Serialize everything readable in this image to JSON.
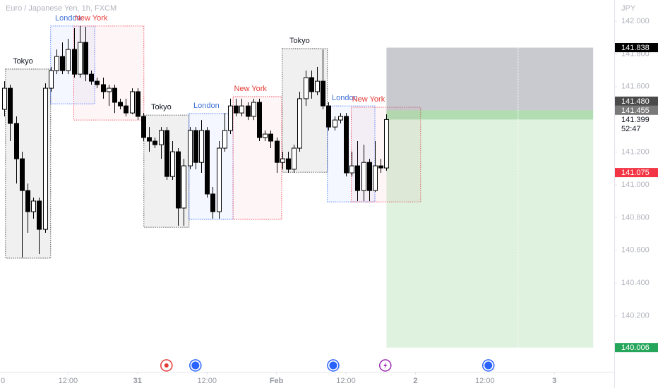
{
  "chart_data": {
    "type": "candlestick",
    "title": "Euro / Japanese Yen, 1h, FXCM",
    "currency": "JPY",
    "up_color": "#ffffff",
    "down_color": "#000000",
    "grid": false,
    "xlim": [
      0.244,
      106.34
    ],
    "ylim": [
      139.858,
      142.129
    ],
    "xticks": [
      {
        "value": 0,
        "label": "0"
      },
      {
        "value": 12,
        "label": "12:00"
      },
      {
        "value": 24,
        "label": "31",
        "bold": true
      },
      {
        "value": 36,
        "label": "12:00"
      },
      {
        "value": 48,
        "label": "Feb",
        "bold": true
      },
      {
        "value": 60,
        "label": "12:00"
      },
      {
        "value": 72,
        "label": "2",
        "bold": true
      },
      {
        "value": 84,
        "label": "12:00"
      },
      {
        "value": 96,
        "label": "3",
        "bold": true
      }
    ],
    "yticks": [
      {
        "value": 142.0,
        "label": "142.000"
      },
      {
        "value": 141.8,
        "label": "141.800"
      },
      {
        "value": 141.6,
        "label": "141.600"
      },
      {
        "value": 141.4,
        "label": "141.400"
      },
      {
        "value": 141.2,
        "label": "141.200"
      },
      {
        "value": 141.0,
        "label": "141.000"
      },
      {
        "value": 140.8,
        "label": "140.800"
      },
      {
        "value": 140.6,
        "label": "140.600"
      },
      {
        "value": 140.4,
        "label": "140.400"
      },
      {
        "value": 140.2,
        "label": "140.200"
      }
    ],
    "x": [
      1,
      2,
      3,
      4,
      5,
      6,
      7,
      8,
      9,
      10,
      11,
      12,
      13,
      14,
      15,
      16,
      17,
      18,
      19,
      20,
      21,
      22,
      23,
      24,
      25,
      26,
      27,
      28,
      29,
      30,
      31,
      32,
      33,
      34,
      35,
      36,
      37,
      38,
      39,
      40,
      41,
      42,
      43,
      44,
      45,
      46,
      47,
      48,
      49,
      50,
      51,
      52,
      53,
      54,
      55,
      56,
      57,
      58,
      59,
      60,
      61,
      62,
      63,
      64,
      65,
      66,
      67
    ],
    "open": [
      141.461,
      141.59,
      141.375,
      141.159,
      140.965,
      140.836,
      140.901,
      140.728,
      141.59,
      141.698,
      141.784,
      141.698,
      141.827,
      141.676,
      141.87,
      141.676,
      141.633,
      141.612,
      141.569,
      141.59,
      141.504,
      141.482,
      141.439,
      141.569,
      141.418,
      141.289,
      141.267,
      141.245,
      141.332,
      141.051,
      141.202,
      140.858,
      141.116,
      141.332,
      141.137,
      141.332,
      140.944,
      140.836,
      141.224,
      141.332,
      141.482,
      141.439,
      141.482,
      141.418,
      141.504,
      141.289,
      141.31,
      141.267,
      141.137,
      141.159,
      141.095,
      141.224,
      141.526,
      141.655,
      141.569,
      141.633,
      141.482,
      141.353,
      141.396,
      141.418,
      141.073,
      141.116,
      140.965,
      141.137,
      140.965,
      141.116,
      141.103
    ],
    "high": [
      141.633,
      141.612,
      141.418,
      141.202,
      141.008,
      140.922,
      140.922,
      141.62,
      141.72,
      141.827,
      141.87,
      141.892,
      141.957,
      141.97,
      141.965,
      141.698,
      141.655,
      141.655,
      141.612,
      141.612,
      141.526,
      141.526,
      141.59,
      141.59,
      141.439,
      141.353,
      141.289,
      141.353,
      141.353,
      141.267,
      141.224,
      141.159,
      141.353,
      141.353,
      141.396,
      141.353,
      140.987,
      141.267,
      141.439,
      141.526,
      141.526,
      141.526,
      141.504,
      141.526,
      141.526,
      141.332,
      141.332,
      141.289,
      141.202,
      141.202,
      141.245,
      141.569,
      141.698,
      141.698,
      141.72,
      141.827,
      141.504,
      141.418,
      141.439,
      141.439,
      141.202,
      141.267,
      141.245,
      141.159,
      141.267,
      141.159,
      141.431
    ],
    "low": [
      141.418,
      141.267,
      141.008,
      140.556,
      140.707,
      140.793,
      140.577,
      140.707,
      141.569,
      141.676,
      141.676,
      141.676,
      141.655,
      141.655,
      141.633,
      141.612,
      141.59,
      141.526,
      141.482,
      141.439,
      141.461,
      141.418,
      141.431,
      141.396,
      141.267,
      141.202,
      141.224,
      141.159,
      141.03,
      141.03,
      140.75,
      140.75,
      141.095,
      141.095,
      141.073,
      140.922,
      140.793,
      140.793,
      141.202,
      141.31,
      141.418,
      141.418,
      141.396,
      141.396,
      141.267,
      141.267,
      141.224,
      141.073,
      141.095,
      141.073,
      141.073,
      141.202,
      141.482,
      141.526,
      141.547,
      141.461,
      141.332,
      141.332,
      141.375,
      141.051,
      141.051,
      140.901,
      140.901,
      140.901,
      140.957,
      141.073,
      141.086
    ],
    "close": [
      141.59,
      141.375,
      141.159,
      140.965,
      140.836,
      140.901,
      140.728,
      141.59,
      141.698,
      141.784,
      141.698,
      141.827,
      141.676,
      141.87,
      141.676,
      141.633,
      141.612,
      141.569,
      141.59,
      141.504,
      141.482,
      141.439,
      141.569,
      141.418,
      141.289,
      141.267,
      141.245,
      141.332,
      141.051,
      141.202,
      140.858,
      141.116,
      141.332,
      141.137,
      141.332,
      140.944,
      140.836,
      141.224,
      141.332,
      141.482,
      141.439,
      141.482,
      141.418,
      141.504,
      141.289,
      141.31,
      141.267,
      141.137,
      141.159,
      141.095,
      141.224,
      141.526,
      141.655,
      141.569,
      141.633,
      141.482,
      141.353,
      141.396,
      141.418,
      141.073,
      141.116,
      140.965,
      141.137,
      140.965,
      141.116,
      141.103,
      141.399
    ],
    "sessions": [
      {
        "name": "Tokyo",
        "start": 1.2,
        "end": 9.0,
        "high": 141.707,
        "low": 140.552,
        "color": "#000000",
        "label_color": "#131722"
      },
      {
        "name": "London",
        "start": 9.0,
        "end": 16.6,
        "high": 141.97,
        "low": 141.495,
        "color": "#2962ff",
        "label_color": "#3d6fd6"
      },
      {
        "name": "New York",
        "start": 13.0,
        "end": 25.1,
        "high": 141.97,
        "low": 141.396,
        "color": "#f23645",
        "label_color": "#e53935"
      },
      {
        "name": "Tokyo",
        "start": 25.1,
        "end": 32.9,
        "high": 141.426,
        "low": 140.741,
        "color": "#000000",
        "label_color": "#131722"
      },
      {
        "name": "London",
        "start": 32.9,
        "end": 40.5,
        "high": 141.435,
        "low": 140.789,
        "color": "#2962ff",
        "label_color": "#3d6fd6"
      },
      {
        "name": "New York",
        "start": 40.5,
        "end": 48.9,
        "high": 141.539,
        "low": 140.789,
        "color": "#f23645",
        "label_color": "#e53935"
      },
      {
        "name": "Tokyo",
        "start": 49.0,
        "end": 56.8,
        "high": 141.832,
        "low": 141.077,
        "color": "#000000",
        "label_color": "#131722"
      },
      {
        "name": "London",
        "start": 56.8,
        "end": 65.0,
        "high": 141.482,
        "low": 140.896,
        "color": "#2962ff",
        "label_color": "#3d6fd6"
      },
      {
        "name": "New York",
        "start": 60.9,
        "end": 72.9,
        "high": 141.474,
        "low": 140.896,
        "color": "#f23645",
        "label_color": "#e53935"
      }
    ],
    "position": {
      "start": 67.0,
      "end": 102.7,
      "entry": 141.455,
      "stop": 141.838,
      "target": 140.006
    },
    "price_labels": [
      {
        "value": 141.838,
        "label": "141.838",
        "color": "#000000",
        "text_color": "#ffffff"
      },
      {
        "value": 141.48,
        "label": "141.480",
        "color": "#4a4a4a",
        "text_color": "#ffffff"
      },
      {
        "value": 141.455,
        "label": "141.455",
        "color": "#7a7a7a",
        "text_color": "#ffffff"
      },
      {
        "value": 141.399,
        "label": "141.399",
        "countdown": "52:47",
        "color": "#ffffff",
        "text_color": "#131722"
      },
      {
        "value": 141.075,
        "label": "141.075",
        "color": "#f23645",
        "text_color": "#ffffff"
      },
      {
        "value": 140.006,
        "label": "140.006",
        "color": "#26a65b",
        "text_color": "#ffffff"
      }
    ],
    "events": [
      {
        "x": 29.0,
        "color": "#e53935"
      },
      {
        "x": 34.0,
        "color": "#2962ff"
      },
      {
        "x": 57.8,
        "color": "#2962ff"
      },
      {
        "x": 66.8,
        "color": "#9c27b0"
      },
      {
        "x": 84.6,
        "color": "#2962ff"
      }
    ]
  }
}
